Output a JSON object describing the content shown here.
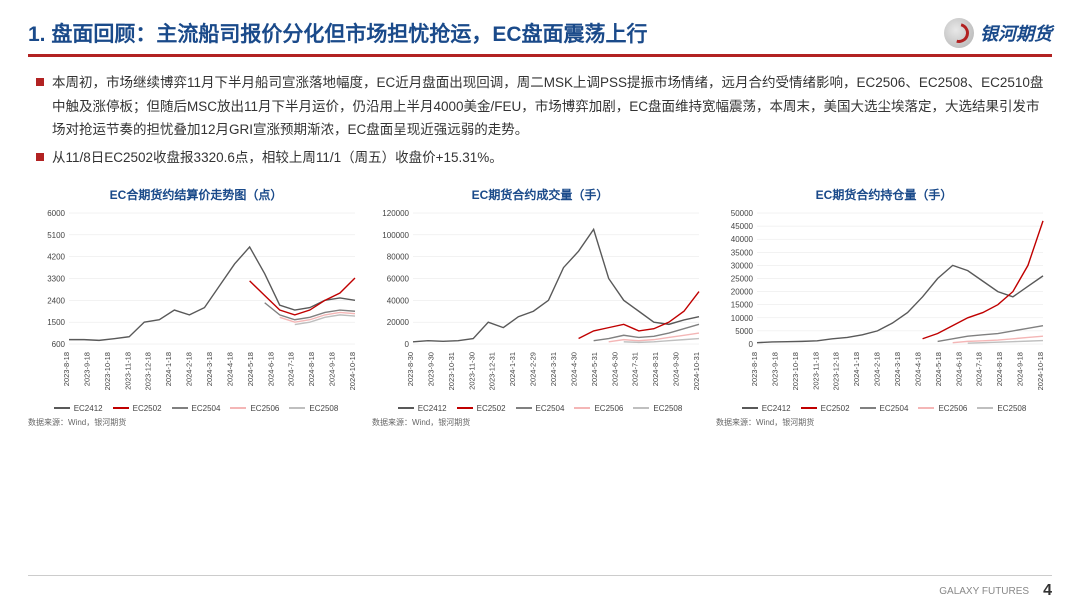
{
  "header": {
    "title": "1. 盘面回顾：主流船司报价分化但市场担忧抢运，EC盘面震荡上行",
    "logo_text": "银河期货"
  },
  "bullets": [
    "本周初，市场继续博弈11月下半月船司宣涨落地幅度，EC近月盘面出现回调，周二MSK上调PSS提振市场情绪，远月合约受情绪影响，EC2506、EC2508、EC2510盘中触及涨停板；但随后MSC放出11月下半月运价，仍沿用上半月4000美金/FEU，市场博弈加剧，EC盘面维持宽幅震荡，本周末，美国大选尘埃落定，大选结果引发市场对抢运节奏的担忧叠加12月GRI宣涨预期渐浓，EC盘面呈现近强远弱的走势。",
    "从11/8日EC2502收盘报3320.6点，相较上周11/1（周五）收盘价+15.31%。"
  ],
  "charts": [
    {
      "title": "EC合期货约结算价走势图（点）",
      "type": "line",
      "ylim": [
        600,
        6000
      ],
      "yticks": [
        600,
        1500,
        2400,
        3300,
        4200,
        5100,
        6000
      ],
      "xticks": [
        "2023-8-18",
        "2023-9-18",
        "2023-10-18",
        "2023-11-18",
        "2023-12-18",
        "2024-1-18",
        "2024-2-18",
        "2024-3-18",
        "2024-4-18",
        "2024-5-18",
        "2024-6-18",
        "2024-7-18",
        "2024-8-18",
        "2024-9-18",
        "2024-10-18"
      ],
      "series": [
        {
          "name": "EC2412",
          "color": "#595959",
          "data": [
            780,
            780,
            750,
            820,
            900,
            1500,
            1600,
            2000,
            1800,
            2100,
            3000,
            3900,
            4600,
            3500,
            2200,
            2000,
            2100,
            2400,
            2500,
            2400
          ]
        },
        {
          "name": "EC2502",
          "color": "#c00000",
          "data": [
            null,
            null,
            null,
            null,
            null,
            null,
            null,
            null,
            null,
            null,
            null,
            null,
            3200,
            2600,
            2000,
            1800,
            2000,
            2400,
            2700,
            3320
          ]
        },
        {
          "name": "EC2504",
          "color": "#808080",
          "data": [
            null,
            null,
            null,
            null,
            null,
            null,
            null,
            null,
            null,
            null,
            null,
            null,
            null,
            2300,
            1800,
            1600,
            1700,
            1900,
            2000,
            1950
          ]
        },
        {
          "name": "EC2506",
          "color": "#f4b6b6",
          "data": [
            null,
            null,
            null,
            null,
            null,
            null,
            null,
            null,
            null,
            null,
            null,
            null,
            null,
            null,
            1700,
            1500,
            1600,
            1800,
            1900,
            1850
          ]
        },
        {
          "name": "EC2508",
          "color": "#bfbfbf",
          "data": [
            null,
            null,
            null,
            null,
            null,
            null,
            null,
            null,
            null,
            null,
            null,
            null,
            null,
            null,
            null,
            1400,
            1500,
            1700,
            1800,
            1750
          ]
        }
      ]
    },
    {
      "title": "EC期货合约成交量（手）",
      "type": "line",
      "ylim": [
        0,
        120000
      ],
      "yticks": [
        0,
        20000,
        40000,
        60000,
        80000,
        100000,
        120000
      ],
      "xticks": [
        "2023-8-30",
        "2023-9-30",
        "2023-10-31",
        "2023-11-30",
        "2023-12-31",
        "2024-1-31",
        "2024-2-29",
        "2024-3-31",
        "2024-4-30",
        "2024-5-31",
        "2024-6-30",
        "2024-7-31",
        "2024-8-31",
        "2024-9-30",
        "2024-10-31"
      ],
      "series": [
        {
          "name": "EC2412",
          "color": "#595959",
          "data": [
            2000,
            3000,
            2500,
            3000,
            5000,
            20000,
            15000,
            25000,
            30000,
            40000,
            70000,
            85000,
            105000,
            60000,
            40000,
            30000,
            20000,
            18000,
            22000,
            25000
          ]
        },
        {
          "name": "EC2502",
          "color": "#c00000",
          "data": [
            null,
            null,
            null,
            null,
            null,
            null,
            null,
            null,
            null,
            null,
            null,
            5000,
            12000,
            15000,
            18000,
            12000,
            14000,
            20000,
            30000,
            48000
          ]
        },
        {
          "name": "EC2504",
          "color": "#808080",
          "data": [
            null,
            null,
            null,
            null,
            null,
            null,
            null,
            null,
            null,
            null,
            null,
            null,
            3000,
            5000,
            8000,
            6000,
            7000,
            10000,
            14000,
            18000
          ]
        },
        {
          "name": "EC2506",
          "color": "#f4b6b6",
          "data": [
            null,
            null,
            null,
            null,
            null,
            null,
            null,
            null,
            null,
            null,
            null,
            null,
            null,
            2000,
            4000,
            3000,
            4000,
            6000,
            8000,
            10000
          ]
        },
        {
          "name": "EC2508",
          "color": "#bfbfbf",
          "data": [
            null,
            null,
            null,
            null,
            null,
            null,
            null,
            null,
            null,
            null,
            null,
            null,
            null,
            null,
            2000,
            1500,
            2000,
            3000,
            4000,
            5000
          ]
        }
      ]
    },
    {
      "title": "EC期货合约持仓量（手）",
      "type": "line",
      "ylim": [
        0,
        50000
      ],
      "yticks": [
        0,
        5000,
        10000,
        15000,
        20000,
        25000,
        30000,
        35000,
        40000,
        45000,
        50000
      ],
      "xticks": [
        "2023-8-18",
        "2023-9-18",
        "2023-10-18",
        "2023-11-18",
        "2023-12-18",
        "2024-1-18",
        "2024-2-18",
        "2024-3-18",
        "2024-4-18",
        "2024-5-18",
        "2024-6-18",
        "2024-7-18",
        "2024-8-18",
        "2024-9-18",
        "2024-10-18"
      ],
      "series": [
        {
          "name": "EC2412",
          "color": "#595959",
          "data": [
            500,
            800,
            900,
            1000,
            1200,
            2000,
            2500,
            3500,
            5000,
            8000,
            12000,
            18000,
            25000,
            30000,
            28000,
            24000,
            20000,
            18000,
            22000,
            26000
          ]
        },
        {
          "name": "EC2502",
          "color": "#c00000",
          "data": [
            null,
            null,
            null,
            null,
            null,
            null,
            null,
            null,
            null,
            null,
            null,
            2000,
            4000,
            7000,
            10000,
            12000,
            15000,
            20000,
            30000,
            47000
          ]
        },
        {
          "name": "EC2504",
          "color": "#808080",
          "data": [
            null,
            null,
            null,
            null,
            null,
            null,
            null,
            null,
            null,
            null,
            null,
            null,
            1000,
            2000,
            3000,
            3500,
            4000,
            5000,
            6000,
            7000
          ]
        },
        {
          "name": "EC2506",
          "color": "#f4b6b6",
          "data": [
            null,
            null,
            null,
            null,
            null,
            null,
            null,
            null,
            null,
            null,
            null,
            null,
            null,
            500,
            1000,
            1200,
            1500,
            2000,
            2500,
            3000
          ]
        },
        {
          "name": "EC2508",
          "color": "#bfbfbf",
          "data": [
            null,
            null,
            null,
            null,
            null,
            null,
            null,
            null,
            null,
            null,
            null,
            null,
            null,
            null,
            300,
            500,
            700,
            900,
            1100,
            1300
          ]
        }
      ]
    }
  ],
  "source_label": "数据来源：Wind，银河期货",
  "footer": {
    "brand": "GALAXY FUTURES",
    "page": "4"
  },
  "colors": {
    "title": "#1a4a8a",
    "accent": "#b22222",
    "grid": "#e6e6e6"
  }
}
